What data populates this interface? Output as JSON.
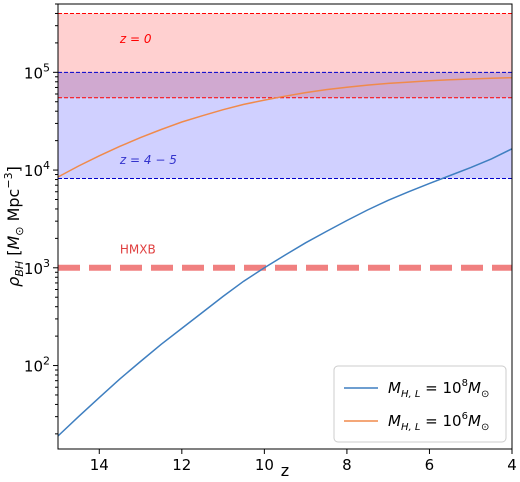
{
  "chart_data": {
    "type": "line",
    "xlabel": "z",
    "ylabel": "ρ_BH [M_⊙ Mpc^-3]",
    "x_reversed": true,
    "xlim": [
      15,
      4
    ],
    "ylim": [
      14,
      500000
    ],
    "yscale": "log",
    "xticks": [
      14,
      12,
      10,
      8,
      6,
      4
    ],
    "yticks": [
      {
        "value": 100,
        "label_base": "10",
        "label_exp": "2"
      },
      {
        "value": 1000,
        "label_base": "10",
        "label_exp": "3"
      },
      {
        "value": 10000,
        "label_base": "10",
        "label_exp": "4"
      },
      {
        "value": 100000,
        "label_base": "10",
        "label_exp": "5"
      }
    ],
    "bands": [
      {
        "label": "z = 0",
        "ymin": 55000,
        "ymax": 400000,
        "color": "#ff0000",
        "fill": "#ffc8c8",
        "label_color": "#ff0000",
        "label_x": 13.5,
        "label_y": 200000
      },
      {
        "label": "z = 4 − 5",
        "ymin": 8200,
        "ymax": 100000,
        "color": "#0000cc",
        "fill": "#c8c8ff",
        "label_color": "#3333cc",
        "label_x": 13.5,
        "label_y": 11500
      }
    ],
    "hlines": [
      {
        "label": "HMXB",
        "y": 1000,
        "color": "#f08080",
        "label_x": 13.5,
        "label_y": 1400
      }
    ],
    "series": [
      {
        "name": "M_H,L = 10^8 M_⊙",
        "color": "#3f7fc0",
        "x": [
          15,
          14.5,
          14,
          13.5,
          13,
          12.5,
          12,
          11.5,
          11,
          10.5,
          10,
          9.5,
          9,
          8.5,
          8,
          7.5,
          7,
          6.5,
          6,
          5.5,
          5,
          4.5,
          4
        ],
        "y": [
          19,
          30,
          47,
          73,
          110,
          165,
          240,
          350,
          510,
          730,
          1000,
          1350,
          1800,
          2350,
          3050,
          3900,
          4900,
          6000,
          7300,
          8800,
          10600,
          13000,
          16500
        ]
      },
      {
        "name": "M_H,L = 10^6 M_⊙",
        "color": "#f08a4b",
        "x": [
          15,
          14.5,
          14,
          13.5,
          13,
          12.5,
          12,
          11.5,
          11,
          10.5,
          10,
          9.5,
          9,
          8.5,
          8,
          7.5,
          7,
          6.5,
          6,
          5.5,
          5,
          4.5,
          4
        ],
        "y": [
          8500,
          11000,
          14000,
          17500,
          21500,
          26000,
          31000,
          36000,
          41500,
          47000,
          52000,
          57000,
          62000,
          66500,
          70500,
          74000,
          77000,
          79500,
          82000,
          84000,
          85500,
          87000,
          88000
        ]
      }
    ],
    "legend": {
      "position": "lower-right",
      "entries": [
        {
          "prefix": "M",
          "sub": "H, L",
          "eq": " = 10",
          "exp": "8",
          "suffix_main": "M",
          "suffix_sub": "⊙",
          "color": "#3f7fc0"
        },
        {
          "prefix": "M",
          "sub": "H, L",
          "eq": " = 10",
          "exp": "6",
          "suffix_main": "M",
          "suffix_sub": "⊙",
          "color": "#f08a4b"
        }
      ]
    },
    "ylabel_parts": {
      "rho": "ρ",
      "rho_sub": "BH",
      "open": " [",
      "msun": "M",
      "msun_sub": "⊙",
      "unit": " Mpc",
      "unit_exp": "−3",
      "close": "]"
    }
  }
}
